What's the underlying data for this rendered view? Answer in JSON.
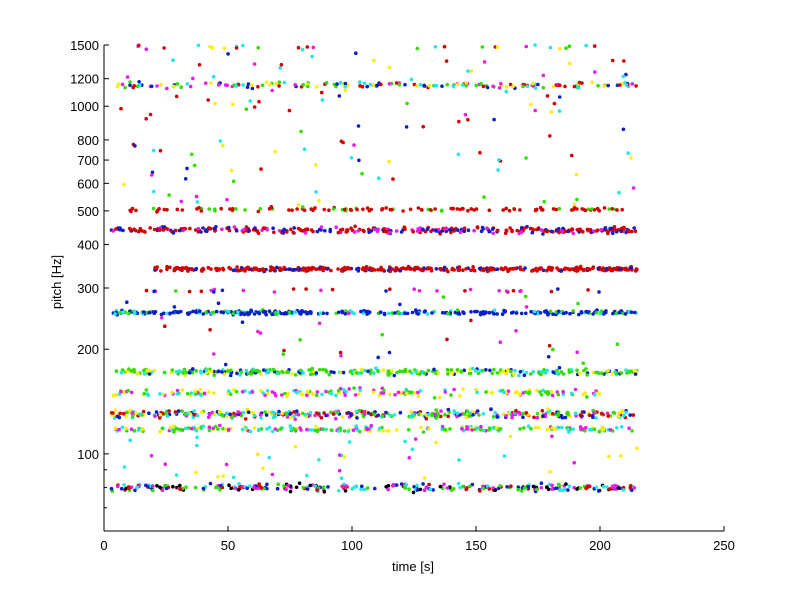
{
  "chart_data": {
    "type": "scatter",
    "xlabel": "time [s]",
    "ylabel": "pitch [Hz]",
    "xlim": [
      0,
      250
    ],
    "ylim": [
      60,
      1500
    ],
    "yscale": "log",
    "grid": false,
    "x_ticks": [
      0,
      50,
      100,
      150,
      200,
      250
    ],
    "y_ticks": [
      100,
      200,
      300,
      400,
      500,
      600,
      700,
      800,
      1000,
      1200,
      1500
    ],
    "y_minor_ticks": [
      70,
      80,
      90
    ],
    "colors": [
      "#d40000",
      "#0a1fc8",
      "#2ee000",
      "#ffee00",
      "#e81ee8",
      "#1ee8e8",
      "#000000"
    ],
    "bands": [
      {
        "hz": 1150,
        "x": [
          5,
          215
        ],
        "spread": 0.03,
        "n": 160,
        "colors": [
          0,
          1,
          2,
          3,
          4,
          5
        ]
      },
      {
        "hz": 1480,
        "x": [
          10,
          200
        ],
        "spread": 0.015,
        "n": 22,
        "colors": [
          2,
          3,
          4,
          5,
          0
        ]
      },
      {
        "hz": 505,
        "x": [
          10,
          210
        ],
        "spread": 0.02,
        "n": 120,
        "colors": [
          0,
          0,
          0,
          2
        ]
      },
      {
        "hz": 440,
        "x": [
          3,
          215
        ],
        "spread": 0.03,
        "n": 330,
        "colors": [
          0,
          0,
          0,
          1,
          1,
          4
        ]
      },
      {
        "hz": 340,
        "x": [
          20,
          215
        ],
        "spread": 0.02,
        "n": 380,
        "colors": [
          0,
          0,
          0,
          0,
          1
        ]
      },
      {
        "hz": 295,
        "x": [
          15,
          210
        ],
        "spread": 0.02,
        "n": 30,
        "colors": [
          0,
          1,
          4
        ]
      },
      {
        "hz": 255,
        "x": [
          3,
          215
        ],
        "spread": 0.02,
        "n": 320,
        "colors": [
          1,
          1,
          1,
          1,
          2,
          5
        ]
      },
      {
        "hz": 172,
        "x": [
          5,
          215
        ],
        "spread": 0.03,
        "n": 300,
        "colors": [
          2,
          2,
          2,
          1,
          3,
          5
        ]
      },
      {
        "hz": 150,
        "x": [
          3,
          200
        ],
        "spread": 0.04,
        "n": 180,
        "colors": [
          3,
          4,
          2,
          5
        ]
      },
      {
        "hz": 130,
        "x": [
          3,
          215
        ],
        "spread": 0.04,
        "n": 380,
        "colors": [
          3,
          4,
          5,
          2,
          0,
          1
        ]
      },
      {
        "hz": 118,
        "x": [
          3,
          215
        ],
        "spread": 0.03,
        "n": 220,
        "colors": [
          3,
          4,
          2,
          5
        ]
      },
      {
        "hz": 80,
        "x": [
          3,
          215
        ],
        "spread": 0.035,
        "n": 280,
        "colors": [
          4,
          2,
          5,
          0,
          1,
          6
        ]
      }
    ],
    "sparse": [
      {
        "hz": [
          520,
          1500
        ],
        "x": [
          3,
          215
        ],
        "n": 130,
        "colors": [
          0,
          1,
          4,
          2,
          3,
          5
        ]
      },
      {
        "hz": [
          180,
          300
        ],
        "x": [
          3,
          215
        ],
        "n": 40,
        "colors": [
          0,
          1,
          2,
          4
        ]
      },
      {
        "hz": [
          85,
          115
        ],
        "x": [
          3,
          215
        ],
        "n": 40,
        "colors": [
          3,
          4,
          5
        ]
      }
    ]
  }
}
